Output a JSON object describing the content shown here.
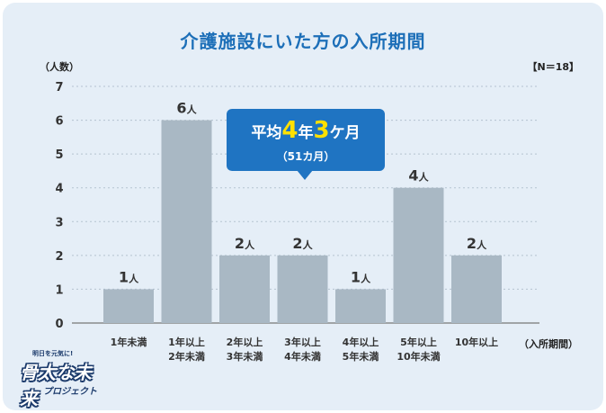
{
  "header": {
    "title": "介護施設にいた方の入所期間",
    "y_unit": "（人数）",
    "sample": "【N＝18】",
    "x_unit": "（入所期間）"
  },
  "callout": {
    "prefix": "平均",
    "years": "4",
    "year_unit": "年",
    "months": "3",
    "month_unit": "ケ月",
    "sub": "（51カ月）"
  },
  "logo": {
    "small": "明日を元気に!",
    "main": "骨太な未来",
    "sub": "プロジェクト"
  },
  "chart_data": {
    "type": "bar",
    "title": "介護施設にいた方の入所期間",
    "ylabel": "（人数）",
    "xlabel": "（入所期間）",
    "ylim": [
      0,
      7
    ],
    "yticks": [
      0,
      1,
      2,
      3,
      4,
      5,
      6,
      7
    ],
    "grid": true,
    "categories": [
      [
        "1年未満"
      ],
      [
        "1年以上",
        "2年未満"
      ],
      [
        "2年以上",
        "3年未満"
      ],
      [
        "3年以上",
        "4年未満"
      ],
      [
        "4年以上",
        "5年未満"
      ],
      [
        "5年以上",
        "10年未満"
      ],
      [
        "10年以上"
      ]
    ],
    "values": [
      1,
      6,
      2,
      2,
      1,
      4,
      2
    ],
    "value_suffix": "人",
    "colors": {
      "bar": "#a9b8c4",
      "grid": "#b5c3d0",
      "axis": "#777777",
      "text": "#333333"
    }
  }
}
